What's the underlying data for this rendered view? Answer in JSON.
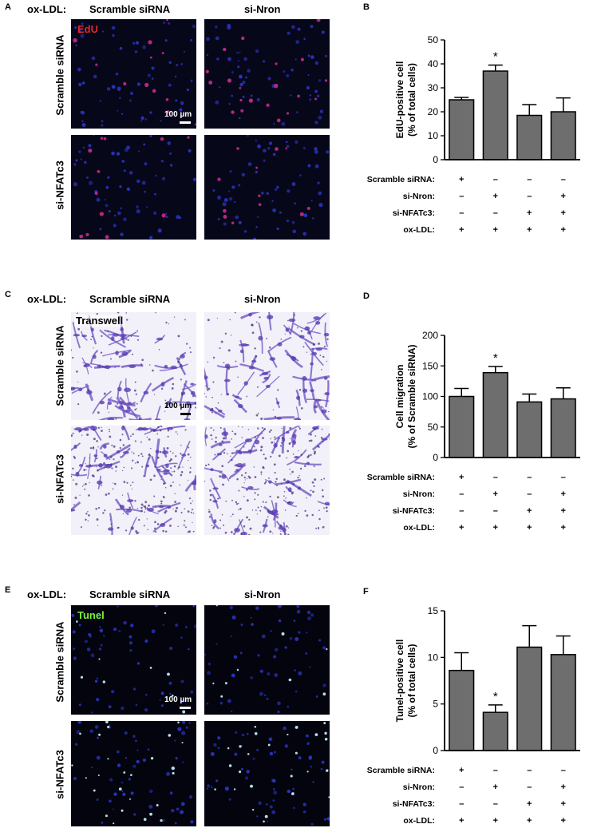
{
  "panels": {
    "A": {
      "letter": "A",
      "condition_label": "ox-LDL:",
      "columns": [
        "Scramble siRNA",
        "si-Nron"
      ],
      "rows": [
        "Scramble siRNA",
        "si-NFATc3"
      ],
      "stain": "EdU",
      "stain_color": "#e02a2a",
      "scale": "100 µm"
    },
    "C": {
      "letter": "C",
      "condition_label": "ox-LDL:",
      "columns": [
        "Scramble siRNA",
        "si-Nron"
      ],
      "rows": [
        "Scramble siRNA",
        "si-NFATc3"
      ],
      "stain": "Transwell",
      "stain_color": "#000000",
      "scale": "100 µm"
    },
    "E": {
      "letter": "E",
      "condition_label": "ox-LDL:",
      "columns": [
        "Scramble siRNA",
        "si-Nron"
      ],
      "rows": [
        "Scramble siRNA",
        "si-NFATc3"
      ],
      "stain": "Tunel",
      "stain_color": "#7cf03c",
      "scale": "100 µm"
    }
  },
  "charts": {
    "B": {
      "letter": "B"
    },
    "D": {
      "letter": "D"
    },
    "F": {
      "letter": "F"
    }
  },
  "chart_data": [
    {
      "panel": "B",
      "type": "bar",
      "ylabel": [
        "EdU-positive cell",
        "(% of total cells)"
      ],
      "ylim": [
        0,
        50
      ],
      "yticks": [
        0,
        10,
        20,
        30,
        40,
        50
      ],
      "values": [
        25,
        37,
        18.5,
        20
      ],
      "errors": [
        1,
        2.5,
        4.5,
        5.8
      ],
      "significance": [
        "",
        "*",
        "",
        ""
      ],
      "bar_color": "#6e6e6e",
      "conditions": [
        {
          "label": "Scramble siRNA:",
          "marks": [
            "+",
            "–",
            "–",
            "–"
          ]
        },
        {
          "label": "si-Nron:",
          "marks": [
            "–",
            "+",
            "–",
            "+"
          ]
        },
        {
          "label": "si-NFATc3:",
          "marks": [
            "–",
            "–",
            "+",
            "+"
          ]
        },
        {
          "label": "ox-LDL:",
          "marks": [
            "+",
            "+",
            "+",
            "+"
          ]
        }
      ]
    },
    {
      "panel": "D",
      "type": "bar",
      "ylabel": [
        "Cell migration",
        "(% of Scramble siRNA)"
      ],
      "ylim": [
        0,
        200
      ],
      "yticks": [
        0,
        50,
        100,
        150,
        200
      ],
      "values": [
        100,
        139,
        91,
        96
      ],
      "errors": [
        13,
        10,
        13,
        18
      ],
      "significance": [
        "",
        "*",
        "",
        ""
      ],
      "bar_color": "#6e6e6e",
      "conditions": [
        {
          "label": "Scramble siRNA:",
          "marks": [
            "+",
            "–",
            "–",
            "–"
          ]
        },
        {
          "label": "si-Nron:",
          "marks": [
            "–",
            "+",
            "–",
            "+"
          ]
        },
        {
          "label": "si-NFATc3:",
          "marks": [
            "–",
            "–",
            "+",
            "+"
          ]
        },
        {
          "label": "ox-LDL:",
          "marks": [
            "+",
            "+",
            "+",
            "+"
          ]
        }
      ]
    },
    {
      "panel": "F",
      "type": "bar",
      "ylabel": [
        "Tunel-positive cell",
        "(% of total cells)"
      ],
      "ylim": [
        0,
        15
      ],
      "yticks": [
        0,
        5,
        10,
        15
      ],
      "values": [
        8.6,
        4.1,
        11.1,
        10.3
      ],
      "errors": [
        1.9,
        0.8,
        2.3,
        2.0
      ],
      "significance": [
        "",
        "*",
        "",
        ""
      ],
      "bar_color": "#6e6e6e",
      "conditions": [
        {
          "label": "Scramble siRNA:",
          "marks": [
            "+",
            "–",
            "–",
            "–"
          ]
        },
        {
          "label": "si-Nron:",
          "marks": [
            "–",
            "+",
            "–",
            "+"
          ]
        },
        {
          "label": "si-NFATc3:",
          "marks": [
            "–",
            "–",
            "+",
            "+"
          ]
        },
        {
          "label": "ox-LDL:",
          "marks": [
            "+",
            "+",
            "+",
            "+"
          ]
        }
      ]
    }
  ]
}
